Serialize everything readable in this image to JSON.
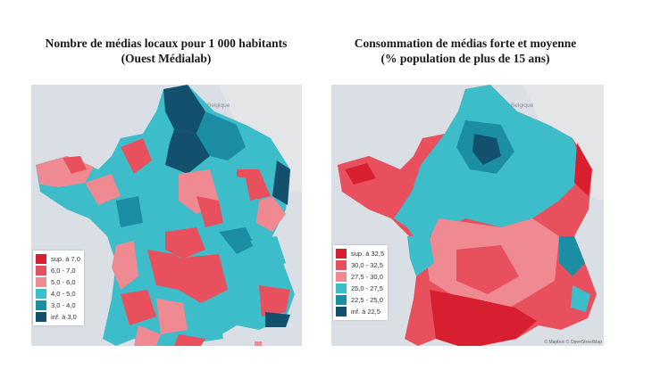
{
  "left_map": {
    "title_line1": "Nombre de médias locaux pour 1 000 habitants",
    "title_line2": "(Ouest Médialab)",
    "country_label": "Belgique",
    "legend": [
      {
        "label": "sup. à 7,0",
        "color": "#d81f2f"
      },
      {
        "label": "6,0 - 7,0",
        "color": "#e8505d"
      },
      {
        "label": "5,0 - 6,0",
        "color": "#f08a92"
      },
      {
        "label": "4,0 - 5,0",
        "color": "#3cbdc9"
      },
      {
        "label": "3,0 - 4,0",
        "color": "#1c8ea3"
      },
      {
        "label": "inf. à 3,0",
        "color": "#12506e"
      }
    ]
  },
  "right_map": {
    "title_line1": "Consommation de médias forte et moyenne",
    "title_line2": "(% population de plus de 15 ans)",
    "country_label": "Belgique",
    "legend": [
      {
        "label": "sup. à 32,5",
        "color": "#d81f2f"
      },
      {
        "label": "30,0 - 32,5",
        "color": "#e8505d"
      },
      {
        "label": "27,5 - 30,0",
        "color": "#f08a92"
      },
      {
        "label": "25,0 - 27,5",
        "color": "#3cbdc9"
      },
      {
        "label": "22,5 - 25,0",
        "color": "#1c8ea3"
      },
      {
        "label": "inf. à 22,5",
        "color": "#12506e"
      }
    ],
    "attribution": "© Mapbox © OpenStreetMap"
  }
}
